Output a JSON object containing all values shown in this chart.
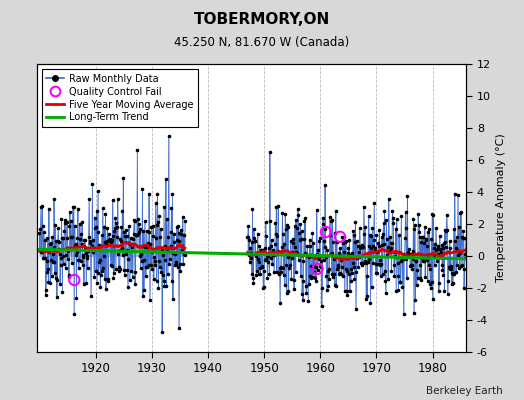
{
  "title": "TOBERMORY,ON",
  "subtitle": "45.250 N, 81.670 W (Canada)",
  "ylabel_right": "Temperature Anomaly (°C)",
  "credit": "Berkeley Earth",
  "xlim": [
    1909.5,
    1986
  ],
  "ylim": [
    -6,
    12
  ],
  "yticks_right": [
    -6,
    -4,
    -2,
    0,
    2,
    4,
    6,
    8,
    10,
    12
  ],
  "xticks": [
    1920,
    1930,
    1940,
    1950,
    1960,
    1970,
    1980
  ],
  "bg_color": "#d8d8d8",
  "plot_bg": "#ffffff",
  "grid_color": "#bbbbbb",
  "raw_color": "#3366cc",
  "raw_dot_color": "#000000",
  "ma_color": "#dd0000",
  "trend_color": "#00aa00",
  "qc_color": "#ff00ff",
  "seed": 42
}
